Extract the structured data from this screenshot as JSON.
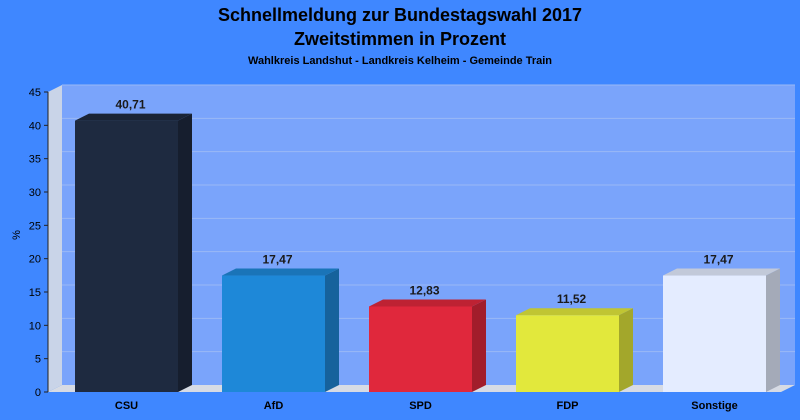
{
  "chart_data": {
    "type": "bar",
    "title": "Schnellmeldung zur Bundestagswahl 2017",
    "title_line2": "Zweitstimmen in Prozent",
    "subtitle": "Wahlkreis Landshut - Landkreis Kelheim - Gemeinde Train",
    "ylabel": "%",
    "xlabel": "",
    "ylim": [
      0,
      45
    ],
    "yticks": [
      0,
      5,
      10,
      15,
      20,
      25,
      30,
      35,
      40,
      45
    ],
    "grid": true,
    "legend": "none",
    "categories": [
      "CSU",
      "AfD",
      "SPD",
      "FDP",
      "Sonstige"
    ],
    "values": [
      40.71,
      17.47,
      12.83,
      11.52,
      17.47
    ],
    "value_labels": [
      "40,71",
      "17,47",
      "12,83",
      "11,52",
      "17,47"
    ],
    "colors": [
      "#1e2a40",
      "#1e88d8",
      "#e0283c",
      "#e2e83c",
      "#e4ecff"
    ],
    "background": "#3f87ff",
    "plot_background": "#7aa4fb"
  }
}
